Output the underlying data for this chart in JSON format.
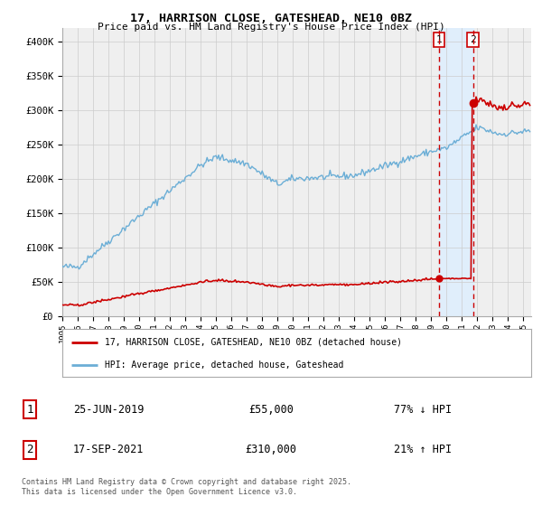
{
  "title": "17, HARRISON CLOSE, GATESHEAD, NE10 0BZ",
  "subtitle": "Price paid vs. HM Land Registry's House Price Index (HPI)",
  "footer": "Contains HM Land Registry data © Crown copyright and database right 2025.\nThis data is licensed under the Open Government Licence v3.0.",
  "legend_line1": "17, HARRISON CLOSE, GATESHEAD, NE10 0BZ (detached house)",
  "legend_line2": "HPI: Average price, detached house, Gateshead",
  "sale1_label": "1",
  "sale1_date": "25-JUN-2019",
  "sale1_price": "£55,000",
  "sale1_hpi": "77% ↓ HPI",
  "sale2_label": "2",
  "sale2_date": "17-SEP-2021",
  "sale2_price": "£310,000",
  "sale2_hpi": "21% ↑ HPI",
  "sale1_year": 2019.49,
  "sale1_value": 55000,
  "sale2_year": 2021.71,
  "sale2_value": 310000,
  "background_color": "#ffffff",
  "plot_bg_color": "#efefef",
  "hpi_color": "#6baed6",
  "price_color": "#cc0000",
  "vline_color": "#cc0000",
  "shade_color": "#ddeeff",
  "grid_color": "#cccccc",
  "ylim": [
    0,
    420000
  ],
  "xlim_start": 1995,
  "xlim_end": 2025.5
}
